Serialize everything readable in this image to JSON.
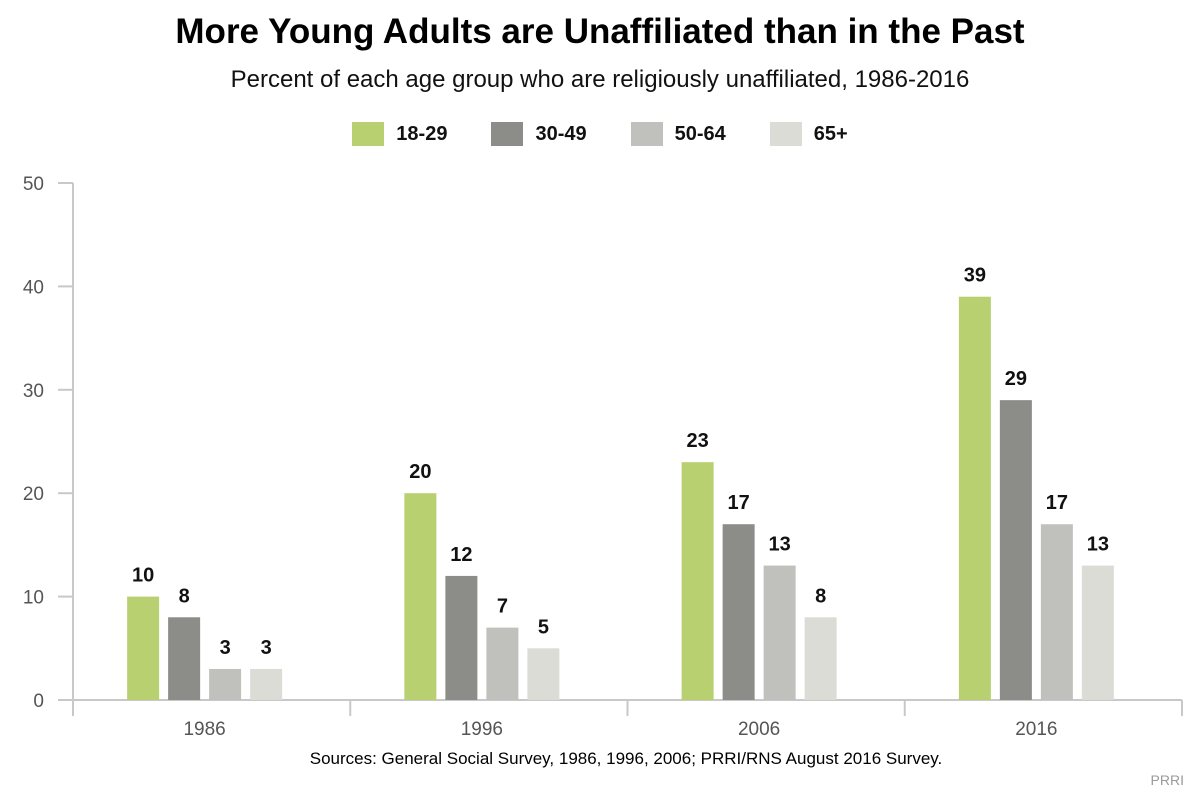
{
  "chart_data": {
    "type": "bar",
    "title": "More Young Adults are Unaffiliated than in the Past",
    "subtitle": "Percent of each age group who are religiously unaffiliated, 1986-2016",
    "categories": [
      "1986",
      "1996",
      "2006",
      "2016"
    ],
    "series": [
      {
        "name": "18-29",
        "color": "#b8d070",
        "values": [
          10,
          20,
          23,
          39
        ]
      },
      {
        "name": "30-49",
        "color": "#8c8c89",
        "values": [
          8,
          12,
          17,
          29
        ]
      },
      {
        "name": "50-64",
        "color": "#c0c0bc",
        "values": [
          3,
          7,
          13,
          17
        ]
      },
      {
        "name": "65+",
        "color": "#dcdcd6",
        "values": [
          3,
          5,
          8,
          13
        ]
      }
    ],
    "xlabel": "",
    "ylabel": "",
    "ylim": [
      0,
      50
    ],
    "yticks": [
      0,
      10,
      20,
      30,
      40,
      50
    ],
    "legend_position": "top-center",
    "grid": false,
    "source": "Sources: General Social Survey, 1986, 1996, 2006; PRRI/RNS August 2016 Survey.",
    "credit": "PRRI"
  }
}
